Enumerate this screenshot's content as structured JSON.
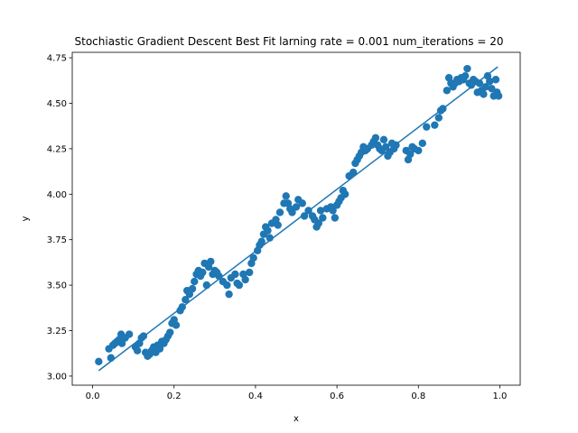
{
  "chart_data": {
    "type": "scatter",
    "title": "Stochiastic Gradient Descent Best Fit larning rate = 0.001 num_iterations = 20",
    "xlabel": "x",
    "ylabel": "y",
    "xlim": [
      -0.05,
      1.05
    ],
    "ylim": [
      2.95,
      4.78
    ],
    "x_ticks": [
      0.0,
      0.2,
      0.4,
      0.6,
      0.8,
      1.0
    ],
    "x_tick_labels": [
      "0.0",
      "0.2",
      "0.4",
      "0.6",
      "0.8",
      "1.0"
    ],
    "y_ticks": [
      3.0,
      3.25,
      3.5,
      3.75,
      4.0,
      4.25,
      4.5,
      4.75
    ],
    "y_tick_labels": [
      "3.00",
      "3.25",
      "3.50",
      "3.75",
      "4.00",
      "4.25",
      "4.50",
      "4.75"
    ],
    "grid": false,
    "color": "#1f77b4",
    "series": [
      {
        "kind": "scatter",
        "points": [
          [
            0.015,
            3.08
          ],
          [
            0.04,
            3.15
          ],
          [
            0.045,
            3.1
          ],
          [
            0.05,
            3.17
          ],
          [
            0.055,
            3.18
          ],
          [
            0.06,
            3.19
          ],
          [
            0.065,
            3.2
          ],
          [
            0.07,
            3.23
          ],
          [
            0.072,
            3.18
          ],
          [
            0.08,
            3.21
          ],
          [
            0.09,
            3.23
          ],
          [
            0.105,
            3.16
          ],
          [
            0.11,
            3.14
          ],
          [
            0.115,
            3.18
          ],
          [
            0.12,
            3.21
          ],
          [
            0.125,
            3.22
          ],
          [
            0.13,
            3.13
          ],
          [
            0.135,
            3.11
          ],
          [
            0.14,
            3.12
          ],
          [
            0.145,
            3.14
          ],
          [
            0.15,
            3.16
          ],
          [
            0.155,
            3.13
          ],
          [
            0.16,
            3.17
          ],
          [
            0.165,
            3.15
          ],
          [
            0.17,
            3.19
          ],
          [
            0.175,
            3.18
          ],
          [
            0.18,
            3.2
          ],
          [
            0.185,
            3.22
          ],
          [
            0.19,
            3.24
          ],
          [
            0.195,
            3.29
          ],
          [
            0.2,
            3.31
          ],
          [
            0.205,
            3.28
          ],
          [
            0.215,
            3.36
          ],
          [
            0.22,
            3.38
          ],
          [
            0.228,
            3.42
          ],
          [
            0.232,
            3.47
          ],
          [
            0.238,
            3.45
          ],
          [
            0.245,
            3.48
          ],
          [
            0.25,
            3.52
          ],
          [
            0.255,
            3.56
          ],
          [
            0.26,
            3.58
          ],
          [
            0.265,
            3.55
          ],
          [
            0.27,
            3.57
          ],
          [
            0.275,
            3.62
          ],
          [
            0.28,
            3.5
          ],
          [
            0.285,
            3.6
          ],
          [
            0.29,
            3.63
          ],
          [
            0.295,
            3.56
          ],
          [
            0.3,
            3.58
          ],
          [
            0.305,
            3.57
          ],
          [
            0.31,
            3.55
          ],
          [
            0.32,
            3.52
          ],
          [
            0.33,
            3.5
          ],
          [
            0.335,
            3.45
          ],
          [
            0.34,
            3.54
          ],
          [
            0.35,
            3.56
          ],
          [
            0.355,
            3.51
          ],
          [
            0.36,
            3.5
          ],
          [
            0.37,
            3.56
          ],
          [
            0.375,
            3.53
          ],
          [
            0.385,
            3.57
          ],
          [
            0.39,
            3.62
          ],
          [
            0.395,
            3.65
          ],
          [
            0.405,
            3.69
          ],
          [
            0.41,
            3.72
          ],
          [
            0.415,
            3.74
          ],
          [
            0.42,
            3.78
          ],
          [
            0.425,
            3.82
          ],
          [
            0.43,
            3.8
          ],
          [
            0.435,
            3.76
          ],
          [
            0.44,
            3.84
          ],
          [
            0.45,
            3.86
          ],
          [
            0.455,
            3.83
          ],
          [
            0.46,
            3.9
          ],
          [
            0.47,
            3.95
          ],
          [
            0.475,
            3.99
          ],
          [
            0.48,
            3.95
          ],
          [
            0.485,
            3.92
          ],
          [
            0.49,
            3.9
          ],
          [
            0.5,
            3.93
          ],
          [
            0.505,
            3.97
          ],
          [
            0.515,
            3.95
          ],
          [
            0.52,
            3.88
          ],
          [
            0.53,
            3.91
          ],
          [
            0.54,
            3.88
          ],
          [
            0.545,
            3.86
          ],
          [
            0.55,
            3.82
          ],
          [
            0.555,
            3.84
          ],
          [
            0.56,
            3.91
          ],
          [
            0.565,
            3.87
          ],
          [
            0.575,
            3.92
          ],
          [
            0.585,
            3.93
          ],
          [
            0.59,
            3.91
          ],
          [
            0.595,
            3.87
          ],
          [
            0.6,
            3.94
          ],
          [
            0.605,
            3.96
          ],
          [
            0.61,
            3.98
          ],
          [
            0.615,
            4.02
          ],
          [
            0.62,
            4.0
          ],
          [
            0.63,
            4.1
          ],
          [
            0.64,
            4.12
          ],
          [
            0.645,
            4.17
          ],
          [
            0.65,
            4.19
          ],
          [
            0.655,
            4.21
          ],
          [
            0.66,
            4.23
          ],
          [
            0.665,
            4.26
          ],
          [
            0.67,
            4.24
          ],
          [
            0.675,
            4.25
          ],
          [
            0.685,
            4.27
          ],
          [
            0.69,
            4.29
          ],
          [
            0.695,
            4.31
          ],
          [
            0.7,
            4.27
          ],
          [
            0.705,
            4.25
          ],
          [
            0.71,
            4.24
          ],
          [
            0.715,
            4.3
          ],
          [
            0.72,
            4.26
          ],
          [
            0.725,
            4.21
          ],
          [
            0.73,
            4.23
          ],
          [
            0.735,
            4.28
          ],
          [
            0.74,
            4.25
          ],
          [
            0.745,
            4.27
          ],
          [
            0.77,
            4.24
          ],
          [
            0.775,
            4.19
          ],
          [
            0.78,
            4.22
          ],
          [
            0.785,
            4.26
          ],
          [
            0.79,
            4.25
          ],
          [
            0.8,
            4.24
          ],
          [
            0.81,
            4.28
          ],
          [
            0.82,
            4.37
          ],
          [
            0.84,
            4.38
          ],
          [
            0.85,
            4.42
          ],
          [
            0.855,
            4.46
          ],
          [
            0.86,
            4.47
          ],
          [
            0.87,
            4.57
          ],
          [
            0.875,
            4.64
          ],
          [
            0.88,
            4.61
          ],
          [
            0.885,
            4.59
          ],
          [
            0.89,
            4.61
          ],
          [
            0.895,
            4.63
          ],
          [
            0.9,
            4.62
          ],
          [
            0.905,
            4.64
          ],
          [
            0.91,
            4.63
          ],
          [
            0.915,
            4.65
          ],
          [
            0.92,
            4.69
          ],
          [
            0.925,
            4.61
          ],
          [
            0.93,
            4.6
          ],
          [
            0.935,
            4.63
          ],
          [
            0.94,
            4.62
          ],
          [
            0.945,
            4.56
          ],
          [
            0.95,
            4.61
          ],
          [
            0.955,
            4.57
          ],
          [
            0.96,
            4.55
          ],
          [
            0.965,
            4.59
          ],
          [
            0.97,
            4.65
          ],
          [
            0.975,
            4.62
          ],
          [
            0.98,
            4.58
          ],
          [
            0.985,
            4.54
          ],
          [
            0.99,
            4.63
          ],
          [
            0.993,
            4.56
          ],
          [
            0.997,
            4.54
          ]
        ]
      },
      {
        "kind": "line",
        "points": [
          [
            0.015,
            3.03
          ],
          [
            0.995,
            4.7
          ]
        ]
      }
    ]
  }
}
